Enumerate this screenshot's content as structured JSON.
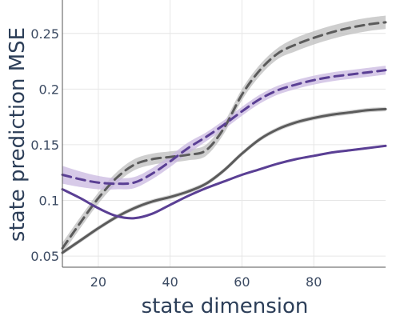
{
  "chart_data": {
    "type": "line",
    "title": "",
    "xlabel": "state dimension",
    "ylabel": "state prediction MSE",
    "xlim": [
      10,
      100
    ],
    "ylim": [
      0.04,
      0.28
    ],
    "xticks": [
      20,
      40,
      60,
      80
    ],
    "yticks": [
      0.05,
      0.1,
      0.15,
      0.2,
      0.25
    ],
    "grid": true,
    "legend": "none",
    "series": [
      {
        "color": "#5b5b5b",
        "dash": "dashed",
        "band_color": "#bdbdbd",
        "x": [
          10,
          15,
          20,
          25,
          30,
          35,
          40,
          45,
          50,
          55,
          60,
          65,
          70,
          75,
          80,
          85,
          90,
          95,
          100
        ],
        "y": [
          0.057,
          0.08,
          0.102,
          0.12,
          0.132,
          0.137,
          0.139,
          0.141,
          0.145,
          0.165,
          0.195,
          0.217,
          0.232,
          0.24,
          0.246,
          0.251,
          0.255,
          0.258,
          0.26
        ],
        "band": [
          0.005,
          0.005,
          0.005,
          0.005,
          0.005,
          0.005,
          0.005,
          0.005,
          0.005,
          0.005,
          0.005,
          0.005,
          0.005,
          0.006,
          0.006,
          0.006,
          0.006,
          0.006,
          0.006
        ]
      },
      {
        "color": "#5a3f94",
        "dash": "dashed",
        "band_color": "#c9b8e0",
        "x": [
          10,
          15,
          20,
          25,
          30,
          35,
          40,
          45,
          50,
          55,
          60,
          65,
          70,
          75,
          80,
          85,
          90,
          95,
          100
        ],
        "y": [
          0.123,
          0.119,
          0.116,
          0.115,
          0.116,
          0.124,
          0.135,
          0.147,
          0.157,
          0.168,
          0.18,
          0.191,
          0.199,
          0.204,
          0.208,
          0.211,
          0.213,
          0.215,
          0.217
        ],
        "band": [
          0.008,
          0.007,
          0.006,
          0.005,
          0.005,
          0.005,
          0.005,
          0.005,
          0.004,
          0.004,
          0.004,
          0.004,
          0.004,
          0.004,
          0.004,
          0.004,
          0.004,
          0.004,
          0.004
        ]
      },
      {
        "color": "#5b5b5b",
        "dash": "solid",
        "band_color": "#c8c8c8",
        "x": [
          10,
          15,
          20,
          25,
          30,
          35,
          40,
          45,
          50,
          55,
          60,
          65,
          70,
          75,
          80,
          85,
          90,
          95,
          100
        ],
        "y": [
          0.053,
          0.064,
          0.075,
          0.085,
          0.093,
          0.099,
          0.103,
          0.108,
          0.115,
          0.127,
          0.142,
          0.155,
          0.164,
          0.17,
          0.174,
          0.177,
          0.179,
          0.181,
          0.182
        ],
        "band": [
          0.002,
          0.002,
          0.002,
          0.002,
          0.002,
          0.002,
          0.002,
          0.002,
          0.002,
          0.002,
          0.002,
          0.002,
          0.002,
          0.002,
          0.002,
          0.002,
          0.002,
          0.002,
          0.002
        ]
      },
      {
        "color": "#5a3f94",
        "dash": "solid",
        "band_color": "#c9b8e0",
        "x": [
          10,
          15,
          20,
          25,
          30,
          35,
          40,
          45,
          50,
          55,
          60,
          65,
          70,
          75,
          80,
          85,
          90,
          95,
          100
        ],
        "y": [
          0.11,
          0.102,
          0.093,
          0.086,
          0.084,
          0.088,
          0.096,
          0.104,
          0.111,
          0.117,
          0.123,
          0.128,
          0.133,
          0.137,
          0.14,
          0.143,
          0.145,
          0.147,
          0.149
        ],
        "band": [
          0.001,
          0.001,
          0.001,
          0.001,
          0.001,
          0.001,
          0.001,
          0.001,
          0.001,
          0.001,
          0.001,
          0.001,
          0.001,
          0.001,
          0.001,
          0.001,
          0.001,
          0.001,
          0.001
        ]
      }
    ]
  }
}
